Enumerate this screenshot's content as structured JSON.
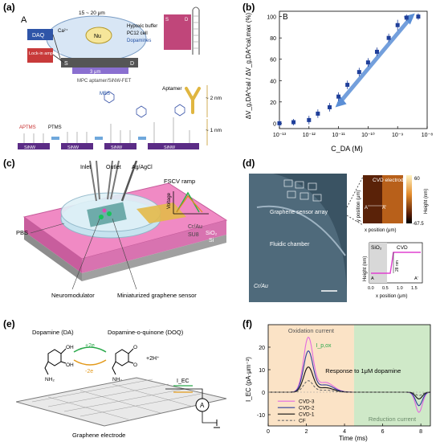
{
  "panel_labels": [
    "(a)",
    "(b)",
    "(c)",
    "(d)",
    "(e)",
    "(f)"
  ],
  "panel_a": {
    "sub_label": "A",
    "dim_top": "15 ~ 20 μm",
    "buffer": "Hypoxic buffer",
    "cell": "PC12 cell",
    "dopamines": "Dopamines",
    "ion_ca": "Ca²⁺",
    "nu": "Nu",
    "daq": "DAQ",
    "lockin": "Lock-in amplifier",
    "s": "S",
    "d": "D",
    "dim_3um": "3 μm",
    "device": "MPC aptamer/SiNW-FET",
    "aptamer": "Aptamer",
    "mbs": "MBS",
    "aptms": "APTMS",
    "ptms": "PTMS",
    "si_nw": [
      "SiNW",
      "SiNW",
      "SiNW",
      "SiNW"
    ],
    "dim_2nm": "~ 2 nm",
    "dim_1nm": "~ 1 nm",
    "inset_s": "S",
    "inset_d": "D"
  },
  "panel_c": {
    "inlet": "Inlet",
    "outlet": "Outlet",
    "agagcl": "Ag/AgCl",
    "fscv": "FSCV ramp",
    "voltage": "Voltage",
    "crau": "Cr/Au",
    "su8": "SU8",
    "pbs": "PBS",
    "sio2": "SiO₂",
    "si": "Si",
    "neuromodulator": "Neuromodulator",
    "sensor": "Miniaturized graphene sensor"
  },
  "panel_d": {
    "array": "Graphene sensor array",
    "chamber": "Fluidic chamber",
    "crau": "Cr/Au",
    "afm_title": "CVD electrode",
    "afm_xlabel": "x position (μm)",
    "afm_ylabel": "y position (μm)",
    "cbar_top": "60",
    "cbar_bot": "-67.5",
    "cbar_label": "Height (nm)",
    "a_mark": "A",
    "a_prime": "A'",
    "prof_sio2": "SiO₂",
    "prof_cvd": "CVD",
    "prof_ylabel": "Height (nm)",
    "prof_xlabel": "x position (μm)",
    "prof_step": "28 nm",
    "prof_ticks": [
      "0.0",
      "0.5",
      "1.0",
      "1.5"
    ],
    "prof_a": "A",
    "prof_aprime": "A'"
  },
  "panel_e": {
    "da": "Dopamine (DA)",
    "doq": "Dopamine-o-quinone (DOQ)",
    "plus2e": "+2e",
    "minus2e": "-2e",
    "h": "+2H⁺",
    "iec": "I_EC",
    "ammeter": "A",
    "oh1": "OH",
    "oh2": "OH",
    "nh2a": "NH₂",
    "nh2b": "NH₂",
    "o1": "O",
    "o2": "O",
    "electrode": "Graphene electrode"
  },
  "chart_data": [
    {
      "type": "scatter",
      "panel": "(b)",
      "sub_label": "B",
      "xlabel": "C_DA (M)",
      "ylabel": "ΔV_g,DA^cal / ΔV_g,DA^cal,max (%)",
      "xscale": "log",
      "xlim": [
        1e-13,
        1e-08
      ],
      "ylim": [
        -5,
        105
      ],
      "x_ticks": [
        "10⁻¹³",
        "10⁻¹²",
        "10⁻¹¹",
        "10⁻¹⁰",
        "10⁻⁹",
        "10⁻⁸"
      ],
      "y_ticks": [
        0,
        20,
        40,
        60,
        80,
        100
      ],
      "x": [
        1e-13,
        3e-13,
        1e-12,
        2e-12,
        5e-12,
        1e-11,
        2e-11,
        5e-11,
        1e-10,
        2e-10,
        5e-10,
        1e-09,
        2e-09,
        5e-09
      ],
      "values": [
        0,
        1,
        3,
        9,
        15,
        25,
        36,
        48,
        57,
        67,
        80,
        92,
        99,
        100
      ],
      "errors": [
        3,
        3,
        4,
        4,
        4,
        4,
        4,
        4,
        4,
        4,
        4,
        5,
        3,
        3
      ],
      "marker_color": "#1f3f9a",
      "arrow_color": "#5b8fd6"
    },
    {
      "type": "line",
      "panel": "(f)",
      "xlabel": "Time (ms)",
      "ylabel": "I_EC (pA·μm⁻²)",
      "xlim": [
        0,
        8.5
      ],
      "ylim": [
        -15,
        30
      ],
      "x_ticks": [
        0,
        2,
        4,
        6,
        8
      ],
      "y_ticks": [
        -10,
        0,
        10,
        20
      ],
      "regions": [
        {
          "label": "Oxidation current",
          "x": [
            0,
            4.5
          ],
          "color": "#fbe3c6"
        },
        {
          "label": "Reduction current",
          "x": [
            4.5,
            8.5
          ],
          "color": "#cfe9c8"
        }
      ],
      "annotation": "Response to 1μM dopamine",
      "peak_label": "I_p,ox",
      "series": [
        {
          "name": "CVD-3",
          "color": "#e36be0",
          "peak_ox": 24,
          "peak_red": -9
        },
        {
          "name": "CVD-2",
          "color": "#2c3f9e",
          "peak_ox": 18,
          "peak_red": -6
        },
        {
          "name": "CVD-1",
          "color": "#111111",
          "peak_ox": 11,
          "peak_red": -3
        },
        {
          "name": "CF",
          "color": "#6e6e6e",
          "peak_ox": 5,
          "peak_red": -1.5
        }
      ]
    }
  ]
}
